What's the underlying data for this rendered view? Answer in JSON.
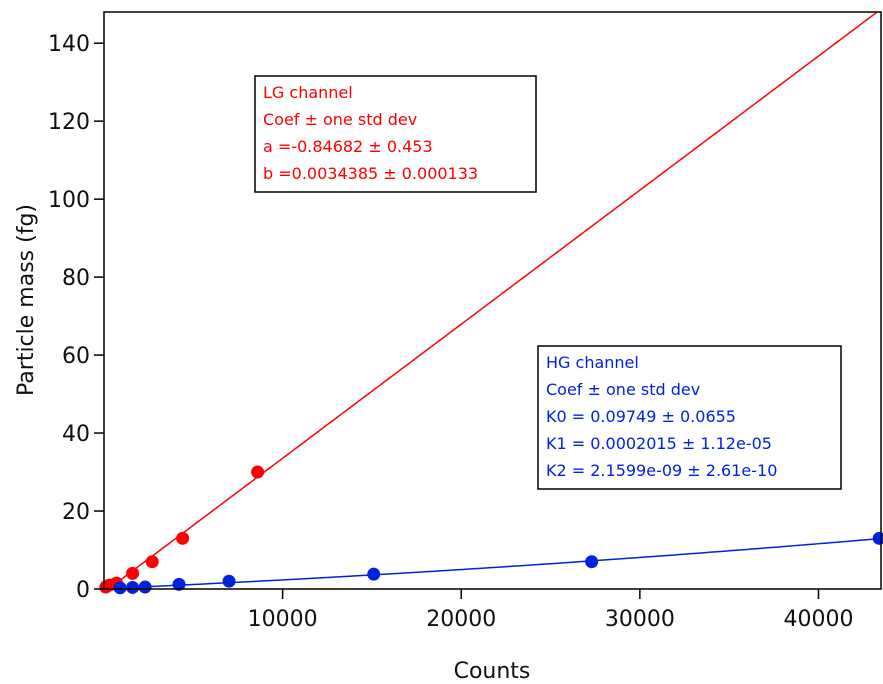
{
  "chart_data": {
    "type": "scatter",
    "xlabel": "Counts",
    "ylabel": "Particle mass (fg)",
    "xlim": [
      0,
      43500
    ],
    "ylim": [
      0,
      148
    ],
    "x_ticks": [
      10000,
      20000,
      30000,
      40000
    ],
    "y_ticks": [
      0,
      20,
      40,
      60,
      80,
      100,
      120,
      140
    ],
    "grid": false,
    "series": [
      {
        "name": "LG channel",
        "color": "#ff0000",
        "points": [
          {
            "x": 100,
            "y": 0.5
          },
          {
            "x": 300,
            "y": 1.0
          },
          {
            "x": 700,
            "y": 1.5
          },
          {
            "x": 1600,
            "y": 4.0
          },
          {
            "x": 2700,
            "y": 7.0
          },
          {
            "x": 4400,
            "y": 13.0
          },
          {
            "x": 8600,
            "y": 30.0
          }
        ],
        "fit": {
          "model": "linear",
          "a": -0.84682,
          "b": 0.0034385
        }
      },
      {
        "name": "HG channel",
        "color": "#0022dd",
        "points": [
          {
            "x": 900,
            "y": 0.3
          },
          {
            "x": 1600,
            "y": 0.4
          },
          {
            "x": 2300,
            "y": 0.5
          },
          {
            "x": 4200,
            "y": 1.2
          },
          {
            "x": 7000,
            "y": 2.0
          },
          {
            "x": 15100,
            "y": 3.8
          },
          {
            "x": 27300,
            "y": 7.0
          },
          {
            "x": 43400,
            "y": 13.0
          }
        ],
        "fit": {
          "model": "quadratic",
          "K0": 0.09749,
          "K1": 0.0002015,
          "K2": 2.1599e-09
        }
      }
    ],
    "annotations": [
      {
        "color": "#ff0000",
        "lines": [
          "LG channel",
          "Coef ± one std dev",
          "a =-0.84682 ± 0.453",
          "b =0.0034385 ± 0.000133"
        ]
      },
      {
        "color": "#0022dd",
        "lines": [
          "HG channel",
          "Coef ± one std dev",
          "K0 = 0.09749 ± 0.0655",
          "K1 = 0.0002015 ± 1.12e-05",
          "K2 = 2.1599e-09 ± 2.61e-10"
        ]
      }
    ]
  }
}
